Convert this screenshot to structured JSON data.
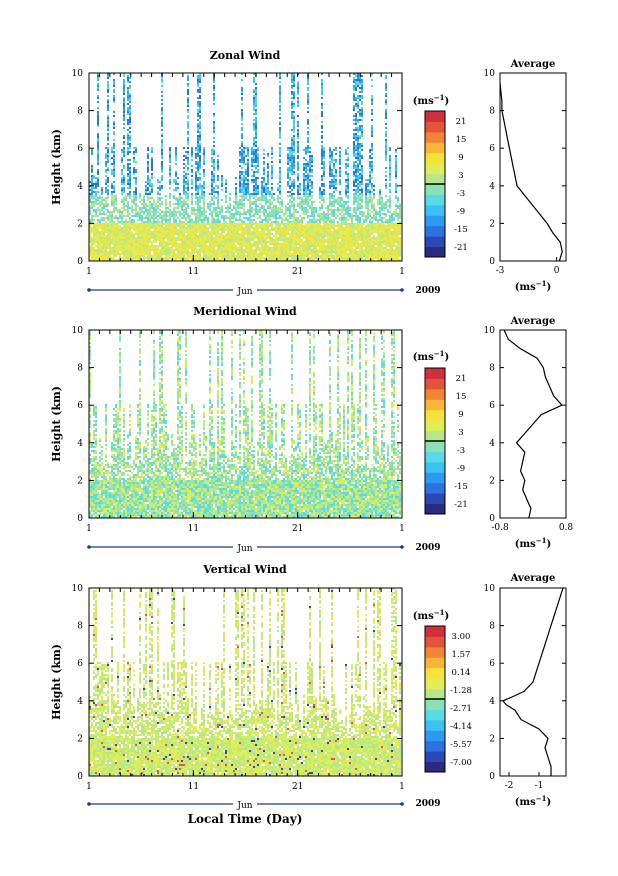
{
  "chart_data": [
    {
      "type": "heatmap",
      "title": "Zonal Wind",
      "ylabel": "Height (km)",
      "xlabel": "",
      "ylim": [
        0,
        10
      ],
      "y_ticks": [
        "0",
        "2",
        "4",
        "6",
        "8",
        "10"
      ],
      "x_ticks": [
        "1",
        "11",
        "21",
        "1"
      ],
      "month": "Jun",
      "year": "2009",
      "colorbar_unit": "(ms",
      "colorbar_unit_exp": "−1",
      "colorbar_unit_close": ")",
      "colorbar_ticks": [
        "21",
        "15",
        "9",
        "3",
        "-3",
        "-9",
        "-15",
        "-21"
      ],
      "colorbar_range": [
        -24,
        24
      ],
      "colorbar_colors": [
        "#2b2a80",
        "#2b48b6",
        "#2b73df",
        "#2c9af0",
        "#3cc1f4",
        "#58dbe6",
        "#8ae2b4",
        "#b8e78a",
        "#e0ee55",
        "#f6e33a",
        "#f8b538",
        "#f08533",
        "#e2553a",
        "#d02f3c"
      ]
    },
    {
      "type": "line",
      "title": "Average",
      "xlabel": "(ms",
      "xlabel_exp": "−1",
      "xlabel_close": ")",
      "ylim": [
        0,
        10
      ],
      "xlim": [
        -3,
        0.5
      ],
      "x_ticks": [
        "-3",
        "0"
      ],
      "y_ticks": [
        "0",
        "2",
        "4",
        "6",
        "8",
        "10"
      ],
      "y": [
        0,
        0.5,
        1,
        1.5,
        2,
        2.5,
        3,
        3.5,
        4,
        4.5,
        5,
        5.5,
        6,
        6.5,
        7,
        7.5,
        8,
        8.5,
        9,
        9.5
      ],
      "x": [
        0.15,
        0.3,
        0.2,
        -0.2,
        -0.5,
        -0.9,
        -1.3,
        -1.7,
        -2.1,
        -2.2,
        -2.3,
        -2.4,
        -2.5,
        -2.6,
        -2.7,
        -2.8,
        -2.9,
        -2.9,
        -2.95,
        -3
      ]
    },
    {
      "type": "heatmap",
      "title": "Meridional Wind",
      "ylabel": "Height (km)",
      "ylim": [
        0,
        10
      ],
      "y_ticks": [
        "0",
        "2",
        "4",
        "6",
        "8",
        "10"
      ],
      "x_ticks": [
        "1",
        "11",
        "21",
        "1"
      ],
      "month": "Jun",
      "year": "2009",
      "colorbar_unit": "(ms",
      "colorbar_unit_exp": "−1",
      "colorbar_unit_close": ")",
      "colorbar_ticks": [
        "21",
        "15",
        "9",
        "3",
        "-3",
        "-9",
        "-15",
        "-21"
      ],
      "colorbar_range": [
        -24,
        24
      ],
      "colorbar_colors": [
        "#2b2a80",
        "#2b48b6",
        "#2b73df",
        "#2c9af0",
        "#3cc1f4",
        "#58dbe6",
        "#8ae2b4",
        "#b8e78a",
        "#e0ee55",
        "#f6e33a",
        "#f8b538",
        "#f08533",
        "#e2553a",
        "#d02f3c"
      ]
    },
    {
      "type": "line",
      "title": "Average",
      "xlabel": "(ms",
      "xlabel_exp": "−1",
      "xlabel_close": ")",
      "ylim": [
        0,
        10
      ],
      "xlim": [
        -0.8,
        0.8
      ],
      "x_ticks": [
        "-0.8",
        "0.8"
      ],
      "y_ticks": [
        "0",
        "2",
        "4",
        "6",
        "8",
        "10"
      ],
      "y": [
        0,
        0.5,
        1,
        1.5,
        2,
        2.5,
        3,
        3.5,
        4,
        4.5,
        5,
        5.5,
        6,
        6.5,
        7,
        7.5,
        8,
        8.5,
        9,
        9.5,
        10
      ],
      "x": [
        -0.1,
        -0.05,
        -0.15,
        -0.25,
        -0.2,
        -0.3,
        -0.25,
        -0.2,
        -0.4,
        -0.2,
        0.0,
        0.2,
        0.7,
        0.5,
        0.4,
        0.3,
        0.25,
        0.1,
        -0.3,
        -0.6,
        -0.7
      ]
    },
    {
      "type": "heatmap",
      "title": "Vertical Wind",
      "ylabel": "Height (km)",
      "xlabel": "Local Time (Day)",
      "ylim": [
        0,
        10
      ],
      "y_ticks": [
        "0",
        "2",
        "4",
        "6",
        "8",
        "10"
      ],
      "x_ticks": [
        "1",
        "11",
        "21",
        "1"
      ],
      "month": "Jun",
      "year": "2009",
      "colorbar_unit": "(ms",
      "colorbar_unit_exp": "−1",
      "colorbar_unit_close": ")",
      "colorbar_ticks": [
        "3.00",
        "1.57",
        "0.14",
        "-1.28",
        "-2.71",
        "-4.14",
        "-5.57",
        "-7.00"
      ],
      "colorbar_range": [
        -7.7,
        3.7
      ],
      "colorbar_colors": [
        "#2b2a80",
        "#2b48b6",
        "#2b73df",
        "#2c9af0",
        "#3cc1f4",
        "#58dbe6",
        "#8ae2b4",
        "#b8e78a",
        "#e0ee55",
        "#f6e33a",
        "#f8b538",
        "#f08533",
        "#e2553a",
        "#d02f3c"
      ]
    },
    {
      "type": "line",
      "title": "Average",
      "xlabel": "(ms",
      "xlabel_exp": "−1",
      "xlabel_close": ")",
      "ylim": [
        0,
        10
      ],
      "xlim": [
        -2.3,
        -0.1
      ],
      "x_ticks": [
        "-2",
        "-1"
      ],
      "y_ticks": [
        "0",
        "2",
        "4",
        "6",
        "8",
        "10"
      ],
      "y": [
        0,
        0.5,
        1,
        1.5,
        2,
        2.5,
        3,
        3.5,
        3.8,
        4,
        4.2,
        4.5,
        5,
        5.5,
        6,
        6.5,
        7,
        7.5,
        8,
        8.5,
        9,
        9.5,
        10
      ],
      "x": [
        -0.6,
        -0.6,
        -0.7,
        -0.8,
        -0.7,
        -1.0,
        -1.6,
        -1.8,
        -2.1,
        -2.2,
        -1.9,
        -1.5,
        -1.2,
        -1.1,
        -1.0,
        -0.9,
        -0.8,
        -0.7,
        -0.6,
        -0.5,
        -0.4,
        -0.3,
        -0.2
      ]
    }
  ]
}
